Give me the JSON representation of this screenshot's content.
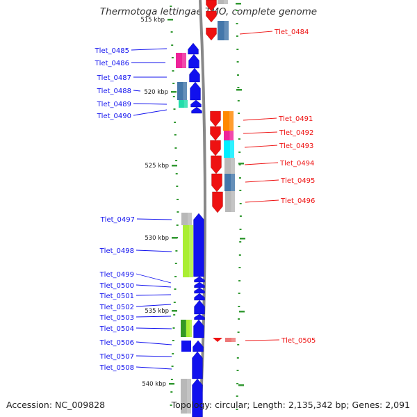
{
  "title": "Thermotoga lettingae TMO, complete genome",
  "accession": "Accession: NC_009828",
  "summary": "Topology: circular; Length: 2,135,342 bp; Genes: 2,091",
  "colors": {
    "forward": "#1111ee",
    "reverse": "#ee1111",
    "backbone": "#888888",
    "tick": "#339933",
    "cog_pink": "#ee2299",
    "cog_steel": "#4477aa",
    "cog_teal": "#22ddaa",
    "cog_orange": "#ff8800",
    "cog_cyan": "#00eeff",
    "cog_gray": "#b8b8b8",
    "cog_lime": "#aaee33",
    "cog_green": "#339922",
    "cog_salmon": "#ee7777"
  },
  "scale_labels": [
    "515 kbp",
    "520 kbp",
    "525 kbp",
    "530 kbp",
    "535 kbp",
    "540 kbp"
  ],
  "forward_labels": [
    "Tlet_0485",
    "Tlet_0486",
    "Tlet_0487",
    "Tlet_0488",
    "Tlet_0489",
    "Tlet_0490",
    "Tlet_0497",
    "Tlet_0498",
    "Tlet_0499",
    "Tlet_0500",
    "Tlet_0501",
    "Tlet_0502",
    "Tlet_0503",
    "Tlet_0504",
    "Tlet_0506",
    "Tlet_0507",
    "Tlet_0508"
  ],
  "reverse_labels": [
    "Tlet_0484",
    "Tlet_0491",
    "Tlet_0492",
    "Tlet_0493",
    "Tlet_0494",
    "Tlet_0495",
    "Tlet_0496",
    "Tlet_0505"
  ]
}
